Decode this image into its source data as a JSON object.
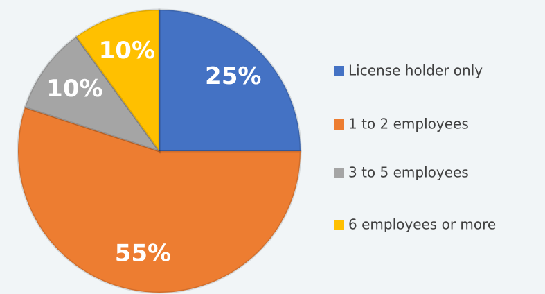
{
  "chart_data": {
    "type": "pie",
    "categories": [
      "License holder only",
      "1 to 2 employees",
      "3 to 5 employees",
      "6 employees or more"
    ],
    "values": [
      25,
      55,
      10,
      10
    ],
    "value_labels": [
      "25%",
      "55%",
      "10%",
      "10%"
    ],
    "colors": [
      "#4472c4",
      "#ed7d31",
      "#a5a5a5",
      "#ffc000"
    ],
    "legend": "right"
  }
}
